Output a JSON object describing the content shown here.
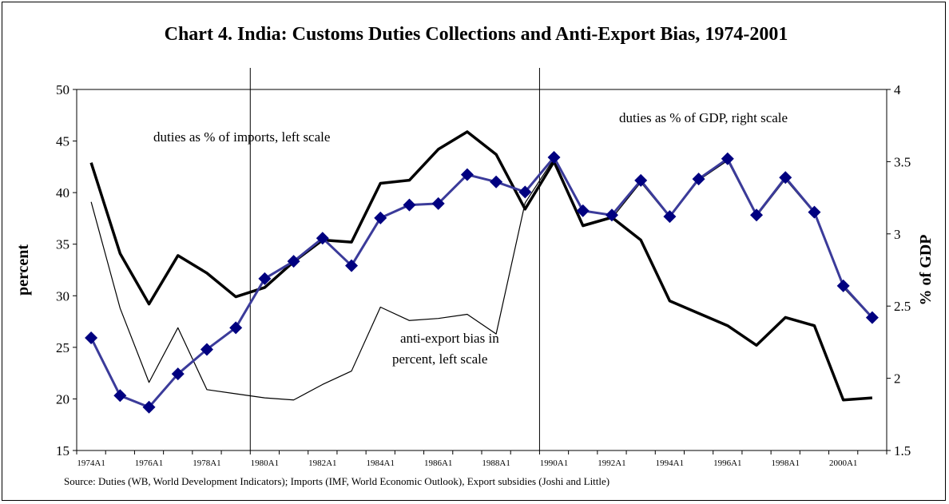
{
  "chart_data": {
    "type": "line",
    "title": "Chart 4. India: Customs Duties Collections and Anti-Export Bias, 1974-2001",
    "ylabel": "percent",
    "y2label": "% of GDP",
    "ylim": [
      15,
      50
    ],
    "y2lim": [
      1.5,
      4
    ],
    "yticks": [
      15,
      20,
      25,
      30,
      35,
      40,
      45,
      50
    ],
    "y2ticks": [
      "1.5",
      "2",
      "2.5",
      "3",
      "3.5",
      "4"
    ],
    "x": [
      1974,
      1975,
      1976,
      1977,
      1978,
      1979,
      1980,
      1981,
      1982,
      1983,
      1984,
      1985,
      1986,
      1987,
      1988,
      1989,
      1990,
      1991,
      1992,
      1993,
      1994,
      1995,
      1996,
      1997,
      1998,
      1999,
      2000,
      2001
    ],
    "xtick_labels": [
      "1974A1",
      "1976A1",
      "1978A1",
      "1980A1",
      "1982A1",
      "1984A1",
      "1986A1",
      "1988A1",
      "1990A1",
      "1992A1",
      "1994A1",
      "1996A1",
      "1998A1",
      "2000A1"
    ],
    "series": [
      {
        "axis": "left",
        "color": "#000000",
        "values": [
          42.9,
          34.1,
          29.2,
          33.9,
          32.2,
          29.9,
          30.8,
          33.3,
          35.4,
          35.2,
          40.9,
          41.2,
          44.2,
          45.9,
          43.7,
          38.4,
          43.0,
          36.8,
          37.6,
          35.4,
          29.5,
          28.3,
          27.1,
          25.2,
          27.9,
          27.1,
          19.9,
          20.1
        ]
      },
      {
        "axis": "left",
        "color": "#000000",
        "values": [
          39.1,
          28.8,
          21.6,
          26.9,
          20.9,
          20.5,
          20.1,
          19.9,
          21.4,
          22.7,
          28.9,
          27.6,
          27.8,
          28.2,
          26.3,
          39.0,
          43.3,
          36.7,
          37.5,
          41.0,
          37.6,
          41.2,
          43.1,
          37.7,
          41.3,
          38.0,
          30.8,
          27.8
        ]
      },
      {
        "axis": "right",
        "color": "#3b3b9a",
        "marker_color": "#000080",
        "values": [
          2.28,
          1.88,
          1.8,
          2.03,
          2.2,
          2.35,
          2.69,
          2.81,
          2.97,
          2.78,
          3.11,
          3.2,
          3.21,
          3.41,
          3.36,
          3.29,
          3.53,
          3.16,
          3.13,
          3.37,
          3.12,
          3.38,
          3.52,
          3.13,
          3.39,
          3.15,
          2.64,
          2.42
        ]
      }
    ],
    "vlines_x": [
      1979.5,
      1989.5
    ],
    "annotations": {
      "imports": "duties as % of imports, left scale",
      "gdp": "duties as % of GDP, right scale",
      "bias_line1": "anti-export bias in",
      "bias_line2": "percent, left scale"
    },
    "source": "Source: Duties (WB, World Development Indicators); Imports (IMF, World Economic Outlook), Export subsidies (Joshi and Little)",
    "grid": false,
    "legend": "none"
  }
}
